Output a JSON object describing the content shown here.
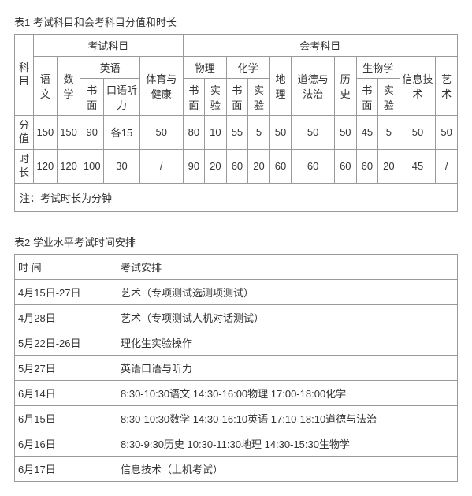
{
  "table1": {
    "title": "表1 考试科目和会考科目分值和时长",
    "groupA": "考试科目",
    "groupB": "会考科目",
    "rowHead": {
      "subject": "科目",
      "score": "分值",
      "duration": "时长"
    },
    "subjects": {
      "yuwen": "语文",
      "shuxue": "数学",
      "yingyu": "英语",
      "yy_shumian": "书面",
      "yy_kouyu": "口语听力",
      "tiyu": "体育与健康",
      "wuli": "物理",
      "wl_shumian": "书面",
      "wl_shiyan": "实验",
      "huaxue": "化学",
      "hx_shumian": "书面",
      "hx_shiyan": "实验",
      "dili": "地理",
      "daofa": "道德与法治",
      "lishi": "历史",
      "shengwu": "生物学",
      "sw_shumian": "书面",
      "sw_shiyan": "实验",
      "xinxi": "信息技术",
      "yishu": "艺术"
    },
    "score": {
      "yuwen": "150",
      "shuxue": "150",
      "yy_shumian": "90",
      "yy_kouyu": "各15",
      "tiyu": "50",
      "wl_shumian": "80",
      "wl_shiyan": "10",
      "hx_shumian": "55",
      "hx_shiyan": "5",
      "dili": "50",
      "daofa": "50",
      "lishi": "50",
      "sw_shumian": "45",
      "sw_shiyan": "5",
      "xinxi": "50",
      "yishu": "50"
    },
    "duration": {
      "yuwen": "120",
      "shuxue": "120",
      "yy_shumian": "100",
      "yy_kouyu": "30",
      "tiyu": "/",
      "wl_shumian": "90",
      "wl_shiyan": "20",
      "hx_shumian": "60",
      "hx_shiyan": "20",
      "dili": "60",
      "daofa": "60",
      "lishi": "60",
      "sw_shumian": "60",
      "sw_shiyan": "20",
      "xinxi": "45",
      "yishu": "/"
    },
    "note": "注：考试时长为分钟"
  },
  "table2": {
    "title": "表2 学业水平考试时间安排",
    "header": {
      "time": "时  间",
      "plan": "考试安排"
    },
    "rows": [
      {
        "time": "4月15日-27日",
        "plan": "艺术（专项测试选测项测试）"
      },
      {
        "time": "4月28日",
        "plan": "艺术（专项测试人机对话测试）"
      },
      {
        "time": "5月22日-26日",
        "plan": "理化生实验操作"
      },
      {
        "time": "5月27日",
        "plan": "英语口语与听力"
      },
      {
        "time": "6月14日",
        "plan": "8:30-10:30语文  14:30-16:00物理 17:00-18:00化学"
      },
      {
        "time": "6月15日",
        "plan": "8:30-10:30数学  14:30-16:10英语 17:10-18:10道德与法治"
      },
      {
        "time": "6月16日",
        "plan": "8:30-9:30历史   10:30-11:30地理 14:30-15:30生物学"
      },
      {
        "time": "6月17日",
        "plan": "信息技术（上机考试）"
      }
    ]
  }
}
